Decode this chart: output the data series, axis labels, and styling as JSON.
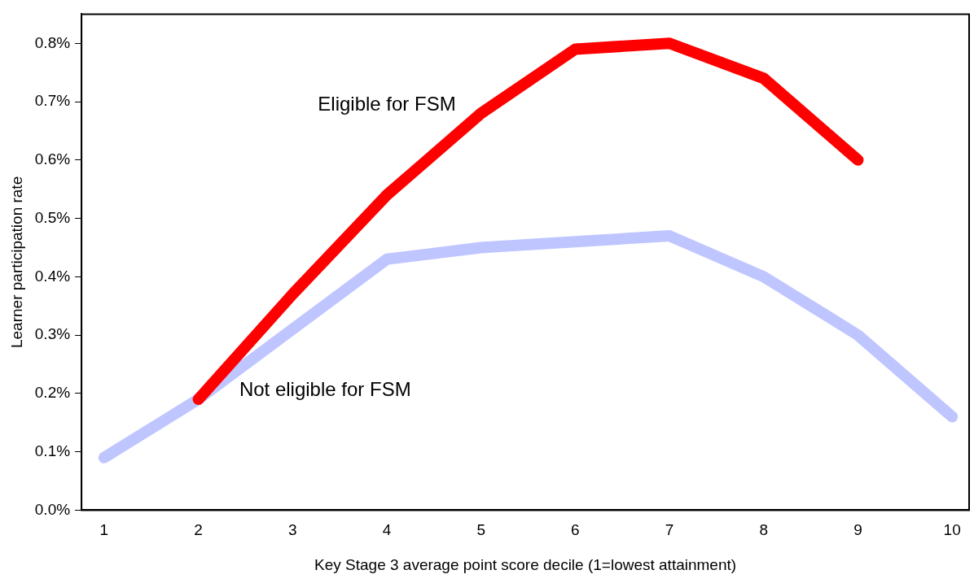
{
  "chart_data": {
    "type": "line",
    "xlabel": "Key Stage 3 average point score decile (1=lowest attainment)",
    "ylabel": "Learner participation rate",
    "x": [
      1,
      2,
      3,
      4,
      5,
      6,
      7,
      8,
      9,
      10
    ],
    "series": [
      {
        "name": "Not eligible for FSM",
        "color": "#bfc6ff",
        "values": [
          0.09,
          0.19,
          0.31,
          0.43,
          0.45,
          0.46,
          0.47,
          0.4,
          0.3,
          0.16
        ]
      },
      {
        "name": "Eligible for FSM",
        "color": "#ff0000",
        "values": [
          null,
          0.19,
          0.37,
          0.54,
          0.68,
          0.79,
          0.8,
          0.74,
          0.6,
          null
        ]
      }
    ],
    "xlim": [
      0.76,
      10.18
    ],
    "xticks": [
      1,
      2,
      3,
      4,
      5,
      6,
      7,
      8,
      9,
      10
    ],
    "ylim": [
      0,
      0.85
    ],
    "yticks": [
      {
        "value": 0,
        "label": "0.0%"
      },
      {
        "value": 0.1,
        "label": "0.1%"
      },
      {
        "value": 0.2,
        "label": "0.2%"
      },
      {
        "value": 0.3,
        "label": "0.3%"
      },
      {
        "value": 0.4,
        "label": "0.4%"
      },
      {
        "value": 0.5,
        "label": "0.5%"
      },
      {
        "value": 0.6,
        "label": "0.6%"
      },
      {
        "value": 0.7,
        "label": "0.7%"
      },
      {
        "value": 0.8,
        "label": "0.8%"
      }
    ],
    "grid": false,
    "legend": false,
    "marker": "none",
    "line_style": "solid"
  }
}
